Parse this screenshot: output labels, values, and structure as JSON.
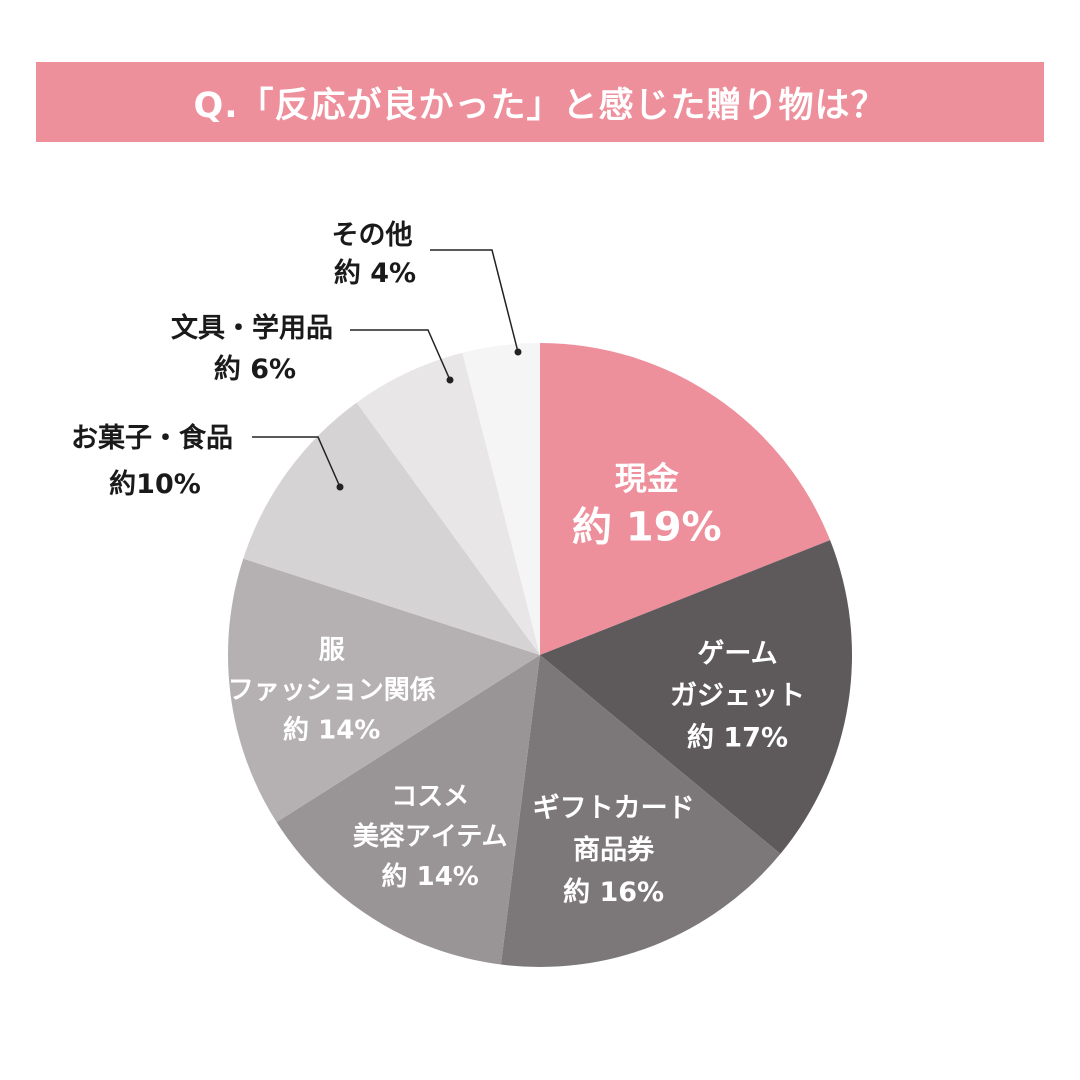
{
  "title": "Q.「反応が良かった」と感じた贈り物は？",
  "chart_data": {
    "type": "pie",
    "start_angle_deg": 0,
    "direction": "clockwise",
    "slices": [
      {
        "label": [
          "現金"
        ],
        "value_label": "約 19%",
        "value": 19,
        "color": "#ee8f9c",
        "text_color": "#ffffff",
        "placement": "inside"
      },
      {
        "label": [
          "ゲーム",
          "ガジェット"
        ],
        "value_label": "約 17%",
        "value": 17,
        "color": "#5e5a5b",
        "text_color": "#ffffff",
        "placement": "inside"
      },
      {
        "label": [
          "ギフトカード",
          "商品券"
        ],
        "value_label": "約 16%",
        "value": 16,
        "color": "#7c7879",
        "text_color": "#ffffff",
        "placement": "inside"
      },
      {
        "label": [
          "コスメ",
          "美容アイテム"
        ],
        "value_label": "約 14%",
        "value": 14,
        "color": "#999496",
        "text_color": "#ffffff",
        "placement": "inside"
      },
      {
        "label": [
          "服",
          "ファッション関係"
        ],
        "value_label": "約 14%",
        "value": 14,
        "color": "#b5b1b2",
        "text_color": "#ffffff",
        "placement": "inside"
      },
      {
        "label": [
          "お菓子・食品"
        ],
        "value_label": "約10%",
        "value": 10,
        "color": "#d6d3d4",
        "text_color": "#1a1a1a",
        "placement": "outside"
      },
      {
        "label": [
          "文具・学用品"
        ],
        "value_label": "約 6%",
        "value": 6,
        "color": "#e8e6e7",
        "text_color": "#1a1a1a",
        "placement": "outside"
      },
      {
        "label": [
          "その他"
        ],
        "value_label": "約 4%",
        "value": 4,
        "color": "#f6f5f5",
        "text_color": "#1a1a1a",
        "placement": "outside"
      }
    ]
  }
}
